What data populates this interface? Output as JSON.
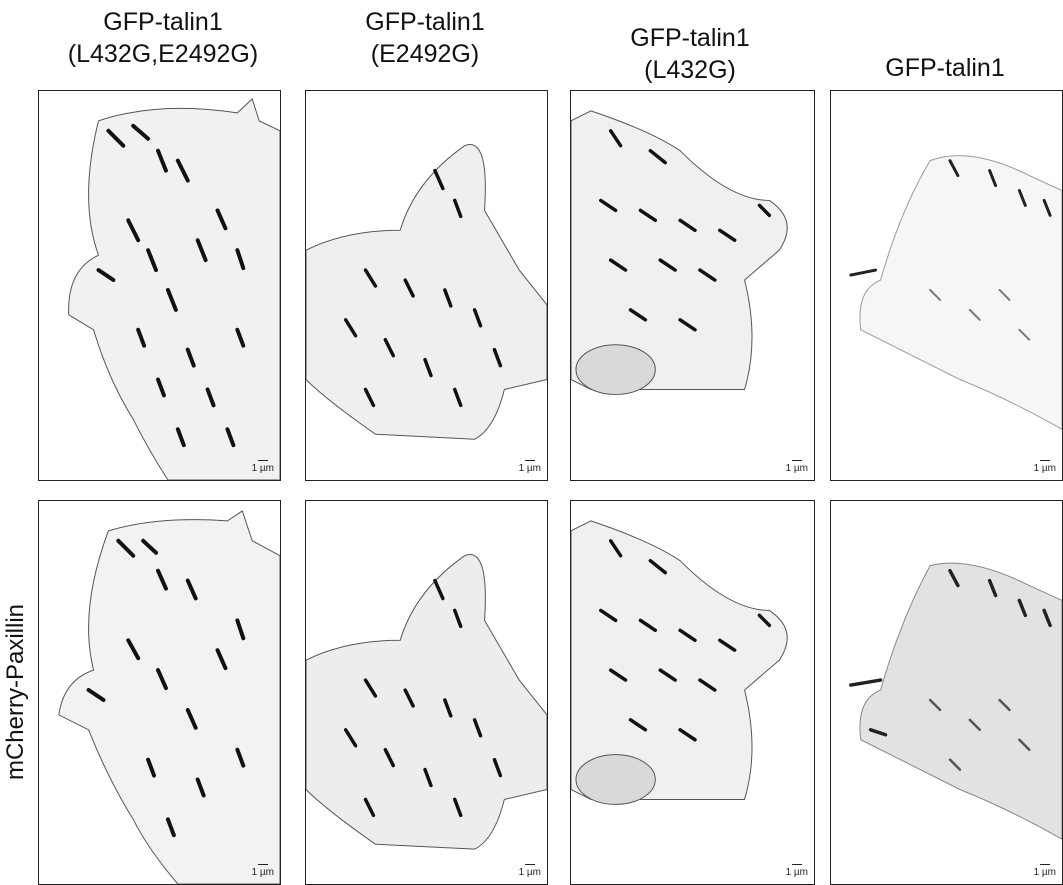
{
  "columns": [
    {
      "title": "GFP-talin1\n(L432G,E2492G)"
    },
    {
      "title": "GFP-talin1\n(E2492G)"
    },
    {
      "title": "GFP-talin1\n(L432G)"
    },
    {
      "title": "GFP-talin1"
    }
  ],
  "rows": [
    {
      "label": ""
    },
    {
      "label": "mCherry-Paxillin"
    }
  ],
  "scale_bar_label": "1 µm"
}
